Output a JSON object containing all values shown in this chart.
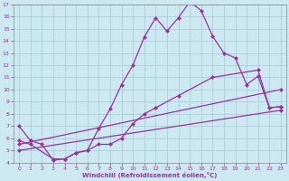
{
  "xlabel": "Windchill (Refroidissement éolien,°C)",
  "bg_color": "#cce8f0",
  "line_color": "#993399",
  "xlim": [
    -0.5,
    23.5
  ],
  "ylim": [
    4,
    17
  ],
  "yticks": [
    4,
    5,
    6,
    7,
    8,
    9,
    10,
    11,
    12,
    13,
    14,
    15,
    16,
    17
  ],
  "xticks": [
    0,
    1,
    2,
    3,
    4,
    5,
    6,
    7,
    8,
    9,
    10,
    11,
    12,
    13,
    14,
    15,
    16,
    17,
    18,
    19,
    20,
    21,
    22,
    23
  ],
  "line1_x": [
    0,
    1,
    2,
    3,
    4,
    5,
    6,
    7,
    8,
    9,
    10,
    11,
    12,
    13,
    14,
    15,
    16,
    17,
    18,
    19,
    20,
    21,
    22,
    23
  ],
  "line1_y": [
    7.0,
    5.8,
    5.5,
    4.2,
    4.3,
    4.8,
    5.0,
    6.8,
    8.4,
    10.4,
    12.0,
    14.3,
    15.9,
    14.8,
    15.9,
    17.2,
    16.5,
    14.4,
    13.0,
    12.6,
    10.4,
    11.1,
    8.5,
    8.6
  ],
  "line2_x": [
    0,
    1,
    3,
    4,
    5,
    6,
    7,
    8,
    9,
    10,
    11,
    12,
    14,
    17,
    21,
    22,
    23
  ],
  "line2_y": [
    5.8,
    5.5,
    4.3,
    4.3,
    4.8,
    5.0,
    5.5,
    5.5,
    6.0,
    7.2,
    8.0,
    8.5,
    9.5,
    11.0,
    11.6,
    8.5,
    8.6
  ],
  "line3_x": [
    0,
    23
  ],
  "line3_y": [
    5.5,
    10.0
  ],
  "line4_x": [
    0,
    23
  ],
  "line4_y": [
    5.0,
    8.3
  ],
  "marker": "D",
  "markersize": 2,
  "linewidth": 0.9
}
